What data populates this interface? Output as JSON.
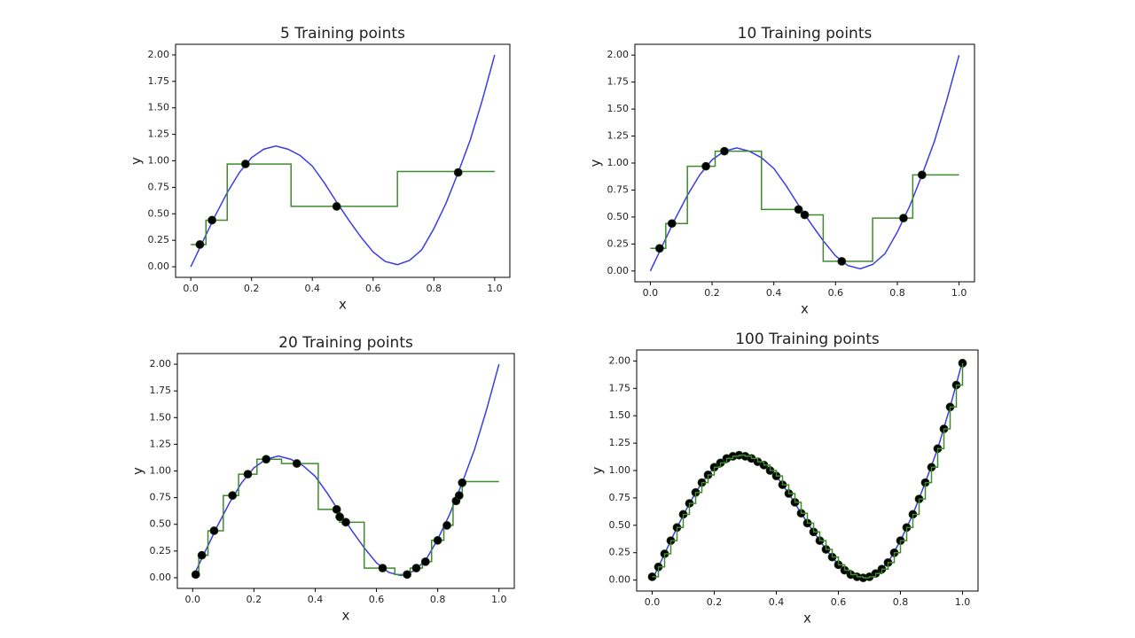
{
  "chart_data": [
    {
      "type": "line",
      "title": "5 Training points",
      "xlabel": "x",
      "ylabel": "y",
      "xlim": [
        -0.05,
        1.05
      ],
      "ylim": [
        -0.1,
        2.1
      ],
      "xticks": [
        {
          "value": 0,
          "label": "0.0"
        },
        0.2,
        0.4,
        0.6,
        0.8,
        {
          "value": 1,
          "label": "1.0"
        }
      ],
      "yticks": [
        {
          "value": 0,
          "label": "0.00"
        },
        0.25,
        {
          "value": 0.5,
          "label": "0.50"
        },
        0.75,
        {
          "value": 1,
          "label": "1.00"
        },
        1.25,
        {
          "value": 1.5,
          "label": "1.50"
        },
        1.75,
        {
          "value": 2,
          "label": "2.00"
        }
      ],
      "series": [
        {
          "kind": "line",
          "color": "#3b3be8",
          "x": [
            0,
            0.04,
            0.08,
            0.12,
            0.16,
            0.2,
            0.24,
            0.28,
            0.32,
            0.36,
            0.4,
            0.44,
            0.48,
            0.52,
            0.56,
            0.6,
            0.64,
            0.68,
            0.72,
            0.76,
            0.8,
            0.84,
            0.88,
            0.92,
            0.96,
            1.0
          ],
          "values": [
            0,
            0.24,
            0.48,
            0.7,
            0.89,
            1.03,
            1.11,
            1.14,
            1.11,
            1.05,
            0.95,
            0.79,
            0.61,
            0.44,
            0.28,
            0.14,
            0.05,
            0.02,
            0.06,
            0.16,
            0.36,
            0.6,
            0.89,
            1.2,
            1.58,
            2.0
          ]
        },
        {
          "kind": "step",
          "color": "#3f8a2e",
          "x": [
            0,
            0.05,
            0.12,
            0.33,
            0.68,
            1.0
          ],
          "values": [
            0.21,
            0.44,
            0.97,
            0.57,
            0.9,
            0.9
          ]
        },
        {
          "kind": "scatter",
          "color": "#000000",
          "x": [
            0.03,
            0.07,
            0.18,
            0.48,
            0.88
          ],
          "values": [
            0.21,
            0.44,
            0.97,
            0.57,
            0.89
          ]
        }
      ]
    },
    {
      "type": "line",
      "title": "10 Training points",
      "xlabel": "x",
      "ylabel": "y",
      "xlim": [
        -0.05,
        1.05
      ],
      "ylim": [
        -0.1,
        2.1
      ],
      "xticks": [
        {
          "value": 0,
          "label": "0.0"
        },
        0.2,
        0.4,
        0.6,
        0.8,
        {
          "value": 1,
          "label": "1.0"
        }
      ],
      "yticks": [
        {
          "value": 0,
          "label": "0.00"
        },
        0.25,
        {
          "value": 0.5,
          "label": "0.50"
        },
        0.75,
        {
          "value": 1,
          "label": "1.00"
        },
        1.25,
        {
          "value": 1.5,
          "label": "1.50"
        },
        1.75,
        {
          "value": 2,
          "label": "2.00"
        }
      ],
      "series": [
        {
          "kind": "line",
          "color": "#3b3be8",
          "x": [
            0,
            0.04,
            0.08,
            0.12,
            0.16,
            0.2,
            0.24,
            0.28,
            0.32,
            0.36,
            0.4,
            0.44,
            0.48,
            0.52,
            0.56,
            0.6,
            0.64,
            0.68,
            0.72,
            0.76,
            0.8,
            0.84,
            0.88,
            0.92,
            0.96,
            1.0
          ],
          "values": [
            0,
            0.24,
            0.48,
            0.7,
            0.89,
            1.03,
            1.11,
            1.14,
            1.11,
            1.05,
            0.95,
            0.79,
            0.61,
            0.44,
            0.28,
            0.14,
            0.05,
            0.02,
            0.06,
            0.16,
            0.36,
            0.6,
            0.89,
            1.2,
            1.58,
            2.0
          ]
        },
        {
          "kind": "step",
          "color": "#3f8a2e",
          "x": [
            0,
            0.05,
            0.12,
            0.21,
            0.36,
            0.49,
            0.56,
            0.72,
            0.85,
            1.0
          ],
          "values": [
            0.21,
            0.44,
            0.97,
            1.11,
            0.57,
            0.52,
            0.09,
            0.49,
            0.89,
            0.89
          ]
        },
        {
          "kind": "scatter",
          "color": "#000000",
          "x": [
            0.03,
            0.07,
            0.18,
            0.24,
            0.48,
            0.5,
            0.62,
            0.82,
            0.88
          ],
          "values": [
            0.21,
            0.44,
            0.97,
            1.11,
            0.57,
            0.52,
            0.09,
            0.49,
            0.89
          ]
        }
      ]
    },
    {
      "type": "line",
      "title": "20 Training points",
      "xlabel": "x",
      "ylabel": "y",
      "xlim": [
        -0.05,
        1.05
      ],
      "ylim": [
        -0.1,
        2.1
      ],
      "xticks": [
        {
          "value": 0,
          "label": "0.0"
        },
        0.2,
        0.4,
        0.6,
        0.8,
        {
          "value": 1,
          "label": "1.0"
        }
      ],
      "yticks": [
        {
          "value": 0,
          "label": "0.00"
        },
        0.25,
        {
          "value": 0.5,
          "label": "0.50"
        },
        0.75,
        {
          "value": 1,
          "label": "1.00"
        },
        1.25,
        {
          "value": 1.5,
          "label": "1.50"
        },
        1.75,
        {
          "value": 2,
          "label": "2.00"
        }
      ],
      "series": [
        {
          "kind": "line",
          "color": "#3b3be8",
          "x": [
            0,
            0.04,
            0.08,
            0.12,
            0.16,
            0.2,
            0.24,
            0.28,
            0.32,
            0.36,
            0.4,
            0.44,
            0.48,
            0.52,
            0.56,
            0.6,
            0.64,
            0.68,
            0.72,
            0.76,
            0.8,
            0.84,
            0.88,
            0.92,
            0.96,
            1.0
          ],
          "values": [
            0,
            0.24,
            0.48,
            0.7,
            0.89,
            1.03,
            1.11,
            1.14,
            1.11,
            1.05,
            0.95,
            0.79,
            0.61,
            0.44,
            0.28,
            0.14,
            0.05,
            0.02,
            0.06,
            0.16,
            0.36,
            0.6,
            0.89,
            1.2,
            1.58,
            2.0
          ]
        },
        {
          "kind": "step",
          "color": "#3f8a2e",
          "x": [
            0,
            0.02,
            0.05,
            0.1,
            0.15,
            0.21,
            0.29,
            0.41,
            0.48,
            0.56,
            0.66,
            0.71,
            0.75,
            0.78,
            0.82,
            0.85,
            0.87,
            0.88,
            1.0
          ],
          "values": [
            0.03,
            0.21,
            0.44,
            0.77,
            0.97,
            1.11,
            1.07,
            0.64,
            0.52,
            0.09,
            0.03,
            0.09,
            0.15,
            0.35,
            0.49,
            0.72,
            0.77,
            0.9,
            0.9
          ]
        },
        {
          "kind": "scatter",
          "color": "#000000",
          "x": [
            0.01,
            0.03,
            0.07,
            0.13,
            0.18,
            0.24,
            0.34,
            0.47,
            0.48,
            0.5,
            0.62,
            0.7,
            0.73,
            0.76,
            0.8,
            0.83,
            0.86,
            0.87,
            0.88
          ],
          "values": [
            0.03,
            0.21,
            0.44,
            0.77,
            0.97,
            1.11,
            1.07,
            0.64,
            0.57,
            0.52,
            0.09,
            0.03,
            0.09,
            0.15,
            0.35,
            0.49,
            0.72,
            0.77,
            0.89
          ]
        }
      ]
    },
    {
      "type": "line",
      "title": "100 Training points",
      "xlabel": "x",
      "ylabel": "y",
      "xlim": [
        -0.05,
        1.05
      ],
      "ylim": [
        -0.1,
        2.1
      ],
      "xticks": [
        {
          "value": 0,
          "label": "0.0"
        },
        0.2,
        0.4,
        0.6,
        0.8,
        {
          "value": 1,
          "label": "1.0"
        }
      ],
      "yticks": [
        {
          "value": 0,
          "label": "0.00"
        },
        0.25,
        {
          "value": 0.5,
          "label": "0.50"
        },
        0.75,
        {
          "value": 1,
          "label": "1.00"
        },
        1.25,
        {
          "value": 1.5,
          "label": "1.50"
        },
        1.75,
        {
          "value": 2,
          "label": "2.00"
        }
      ],
      "series": [
        {
          "kind": "line",
          "color": "#3b3be8",
          "x": [
            0,
            0.04,
            0.08,
            0.12,
            0.16,
            0.2,
            0.24,
            0.28,
            0.32,
            0.36,
            0.4,
            0.44,
            0.48,
            0.52,
            0.56,
            0.6,
            0.64,
            0.68,
            0.72,
            0.76,
            0.8,
            0.84,
            0.88,
            0.92,
            0.96,
            1.0
          ],
          "values": [
            0,
            0.24,
            0.48,
            0.7,
            0.89,
            1.03,
            1.11,
            1.14,
            1.11,
            1.05,
            0.95,
            0.79,
            0.61,
            0.44,
            0.28,
            0.14,
            0.05,
            0.02,
            0.06,
            0.16,
            0.36,
            0.6,
            0.89,
            1.2,
            1.58,
            2.0
          ]
        },
        {
          "kind": "scatter",
          "color": "#000000",
          "x": [
            0,
            0.02,
            0.04,
            0.06,
            0.08,
            0.1,
            0.12,
            0.14,
            0.16,
            0.18,
            0.2,
            0.22,
            0.24,
            0.26,
            0.28,
            0.3,
            0.32,
            0.34,
            0.36,
            0.38,
            0.4,
            0.42,
            0.44,
            0.46,
            0.48,
            0.5,
            0.52,
            0.54,
            0.56,
            0.58,
            0.6,
            0.62,
            0.64,
            0.66,
            0.68,
            0.7,
            0.72,
            0.74,
            0.76,
            0.78,
            0.8,
            0.82,
            0.84,
            0.86,
            0.88,
            0.9,
            0.92,
            0.94,
            0.96,
            0.98,
            1.0
          ],
          "values": [
            0.03,
            0.12,
            0.24,
            0.36,
            0.48,
            0.6,
            0.7,
            0.8,
            0.89,
            0.96,
            1.03,
            1.07,
            1.11,
            1.13,
            1.14,
            1.13,
            1.11,
            1.08,
            1.05,
            1.0,
            0.95,
            0.87,
            0.79,
            0.71,
            0.61,
            0.52,
            0.44,
            0.36,
            0.28,
            0.21,
            0.14,
            0.09,
            0.05,
            0.03,
            0.02,
            0.03,
            0.06,
            0.1,
            0.16,
            0.25,
            0.36,
            0.48,
            0.6,
            0.74,
            0.89,
            1.03,
            1.2,
            1.38,
            1.58,
            1.78,
            1.98
          ]
        },
        {
          "kind": "step",
          "color": "#3f8a2e",
          "x": [
            0,
            0.02,
            0.04,
            0.06,
            0.08,
            0.1,
            0.12,
            0.14,
            0.16,
            0.18,
            0.2,
            0.22,
            0.24,
            0.26,
            0.28,
            0.3,
            0.32,
            0.34,
            0.36,
            0.38,
            0.4,
            0.42,
            0.44,
            0.46,
            0.48,
            0.5,
            0.52,
            0.54,
            0.56,
            0.58,
            0.6,
            0.62,
            0.64,
            0.66,
            0.68,
            0.7,
            0.72,
            0.74,
            0.76,
            0.78,
            0.8,
            0.82,
            0.84,
            0.86,
            0.88,
            0.9,
            0.92,
            0.94,
            0.96,
            0.98,
            1.0
          ],
          "values": [
            0.03,
            0.12,
            0.24,
            0.36,
            0.48,
            0.6,
            0.7,
            0.8,
            0.89,
            0.96,
            1.03,
            1.07,
            1.11,
            1.13,
            1.14,
            1.13,
            1.11,
            1.08,
            1.05,
            1.0,
            0.95,
            0.87,
            0.79,
            0.71,
            0.61,
            0.52,
            0.44,
            0.36,
            0.28,
            0.21,
            0.14,
            0.09,
            0.05,
            0.03,
            0.02,
            0.03,
            0.06,
            0.1,
            0.16,
            0.25,
            0.36,
            0.48,
            0.6,
            0.74,
            0.89,
            1.03,
            1.2,
            1.38,
            1.58,
            1.78,
            1.98
          ]
        }
      ]
    }
  ]
}
